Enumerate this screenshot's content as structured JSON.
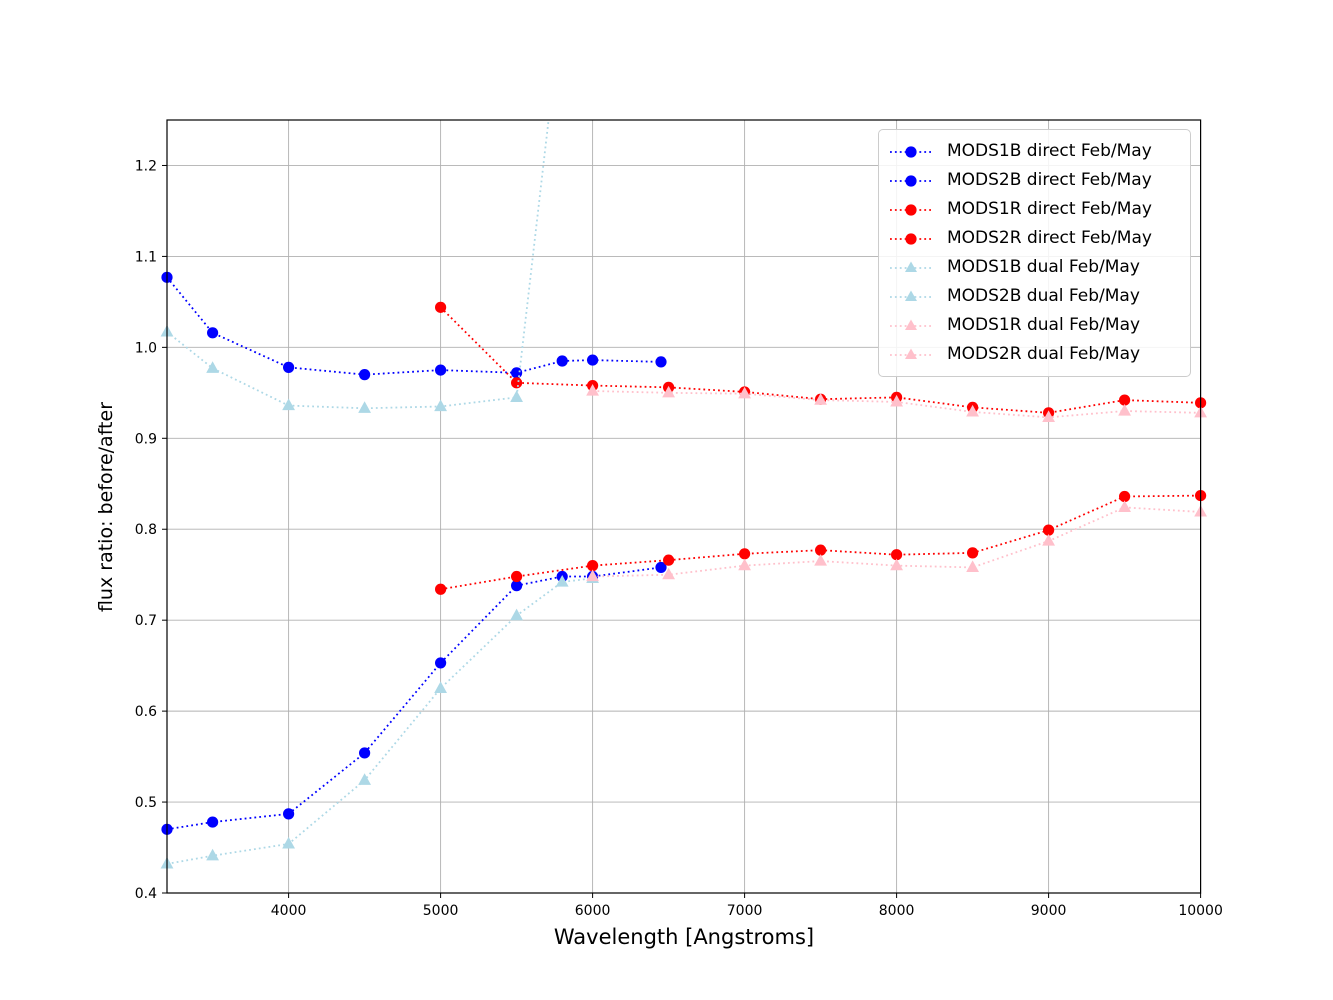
{
  "figure": {
    "background": "#ffffff"
  },
  "legend": {
    "position": "upper-right"
  },
  "chart_data": {
    "type": "line",
    "title": "",
    "xlabel": "Wavelength [Angstroms]",
    "ylabel": "flux ratio: before/after",
    "xlim": [
      3200,
      10000
    ],
    "ylim": [
      0.4,
      1.25
    ],
    "xtick_labels": [
      "4000",
      "5000",
      "6000",
      "7000",
      "8000",
      "9000",
      "10000"
    ],
    "ytick_labels": [
      "0.4",
      "0.5",
      "0.6",
      "0.7",
      "0.8",
      "0.9",
      "1.0",
      "1.1",
      "1.2"
    ],
    "grid": true,
    "grid_color": "#b0b0b0",
    "spine_color": "#000000",
    "linestyle": "dotted",
    "series": [
      {
        "name": "MODS1B direct Feb/May",
        "color": "#0000ff",
        "marker": "circle",
        "x": [
          3200,
          3500,
          4000,
          4500,
          5000,
          5500,
          5800,
          6000,
          6450
        ],
        "y": [
          1.077,
          1.016,
          0.978,
          0.97,
          0.975,
          0.972,
          0.985,
          0.986,
          0.984
        ]
      },
      {
        "name": "MODS2B direct Feb/May",
        "color": "#0000ff",
        "marker": "circle",
        "x": [
          3200,
          3500,
          4000,
          4500,
          5000,
          5500,
          5800,
          6000,
          6450
        ],
        "y": [
          0.47,
          0.478,
          0.487,
          0.554,
          0.653,
          0.738,
          0.748,
          0.748,
          0.758
        ]
      },
      {
        "name": "MODS1R direct Feb/May",
        "color": "#ff0000",
        "marker": "circle",
        "x": [
          5000,
          5500,
          6000,
          6500,
          7000,
          7500,
          8000,
          8500,
          9000,
          9500,
          10000
        ],
        "y": [
          1.044,
          0.961,
          0.958,
          0.956,
          0.951,
          0.943,
          0.945,
          0.934,
          0.928,
          0.942,
          0.939
        ]
      },
      {
        "name": "MODS2R direct Feb/May",
        "color": "#ff0000",
        "marker": "circle",
        "x": [
          5000,
          5500,
          6000,
          6500,
          7000,
          7500,
          8000,
          8500,
          9000,
          9500,
          10000
        ],
        "y": [
          0.734,
          0.748,
          0.76,
          0.766,
          0.773,
          0.777,
          0.772,
          0.774,
          0.799,
          0.836,
          0.837
        ]
      },
      {
        "name": "MODS1B dual Feb/May",
        "color": "#add8e6",
        "marker": "triangle",
        "x": [
          3200,
          3500,
          4000,
          4500,
          5000,
          5500,
          5800
        ],
        "y": [
          1.017,
          0.977,
          0.936,
          0.933,
          0.935,
          0.945,
          1.38
        ]
      },
      {
        "name": "MODS2B dual Feb/May",
        "color": "#add8e6",
        "marker": "triangle",
        "x": [
          3200,
          3500,
          4000,
          4500,
          5000,
          5500,
          5800,
          6000
        ],
        "y": [
          0.432,
          0.441,
          0.454,
          0.524,
          0.625,
          0.705,
          0.742,
          0.746
        ]
      },
      {
        "name": "MODS1R dual Feb/May",
        "color": "#ffc0cb",
        "marker": "triangle",
        "x": [
          6000,
          6500,
          7000,
          7500,
          8000,
          8500,
          9000,
          9500,
          10000
        ],
        "y": [
          0.952,
          0.95,
          0.949,
          0.942,
          0.94,
          0.929,
          0.923,
          0.93,
          0.928
        ]
      },
      {
        "name": "MODS2R dual Feb/May",
        "color": "#ffc0cb",
        "marker": "triangle",
        "x": [
          6000,
          6500,
          7000,
          7500,
          8000,
          8500,
          9000,
          9500,
          10000
        ],
        "y": [
          0.748,
          0.75,
          0.76,
          0.765,
          0.76,
          0.758,
          0.787,
          0.824,
          0.819
        ]
      }
    ]
  }
}
